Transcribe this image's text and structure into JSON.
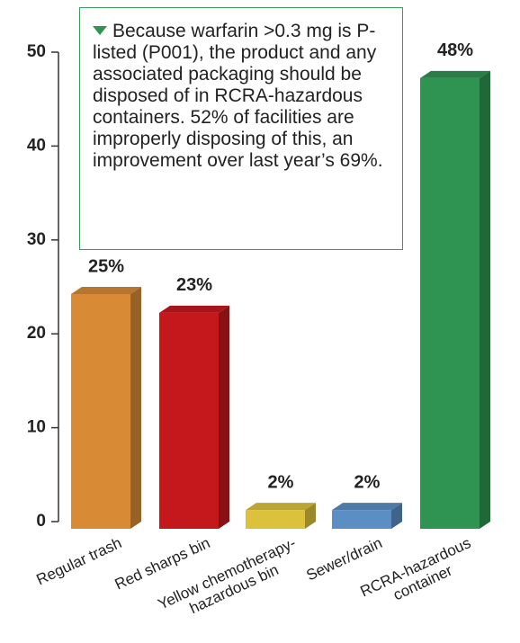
{
  "chart_data": {
    "type": "bar",
    "categories": [
      "Regular trash",
      "Red sharps bin",
      "Yellow chemotherapy-\nhazardous bin",
      "Sewer/drain",
      "RCRA-hazardous\ncontainer"
    ],
    "values": [
      25,
      23,
      2,
      2,
      48
    ],
    "value_labels": [
      "25%",
      "23%",
      "2%",
      "2%",
      "48%"
    ],
    "colors": [
      "#d98a35",
      "#c4181d",
      "#dcc23c",
      "#5b8fc4",
      "#2f9452"
    ],
    "ylim": [
      0,
      50
    ],
    "yticks": [
      0,
      10,
      20,
      30,
      40,
      50
    ],
    "annotation": "Because warfarin >0.3 mg is P-listed (P001), the product and any associated packaging should be disposed of in RCRA-hazardous containers. 52% of facilities are improperly disposing of this, an improvement over last year’s 69%."
  }
}
